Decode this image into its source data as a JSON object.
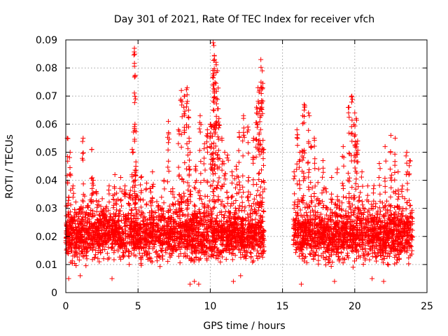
{
  "chart_data": {
    "type": "scatter",
    "title": "Day 301 of 2021, Rate Of TEC Index for receiver vfch",
    "xlabel": "GPS time / hours",
    "ylabel": "ROTI / TECUs",
    "xlim": [
      0,
      25
    ],
    "ylim": [
      0,
      0.09
    ],
    "xticks": [
      0,
      5,
      10,
      15,
      20,
      25
    ],
    "xtick_labels": [
      "0",
      "5",
      "10",
      "15",
      "20",
      "25"
    ],
    "yticks": [
      0,
      0.01,
      0.02,
      0.03,
      0.04,
      0.05,
      0.06,
      0.07,
      0.08,
      0.09
    ],
    "ytick_labels": [
      "0",
      "0.01",
      "0.02",
      "0.03",
      "0.04",
      "0.05",
      "0.06",
      "0.07",
      "0.08",
      "0.09"
    ],
    "grid": true,
    "marker": "+",
    "color": "#ff0000",
    "series": [
      {
        "name": "ROTI",
        "x": [
          0.1,
          0.2,
          0.3,
          0.5,
          0.7,
          1.0,
          1.2,
          1.5,
          1.8,
          1.9,
          2.1,
          2.5,
          3.0,
          3.4,
          3.8,
          4.1,
          4.4,
          4.6,
          4.75,
          4.8,
          4.85,
          5.2,
          5.6,
          6.0,
          6.4,
          6.8,
          7.1,
          7.4,
          7.8,
          8.0,
          8.2,
          8.4,
          8.5,
          8.6,
          9.0,
          9.3,
          9.6,
          9.8,
          10.0,
          10.1,
          10.2,
          10.25,
          10.3,
          10.4,
          10.5,
          10.6,
          10.8,
          11.0,
          11.2,
          11.5,
          11.8,
          12.0,
          12.3,
          12.6,
          13.0,
          13.2,
          13.3,
          13.4,
          13.5,
          13.6,
          13.7,
          15.8,
          16.0,
          16.2,
          16.4,
          16.5,
          16.8,
          17.0,
          17.2,
          17.5,
          17.8,
          18.0,
          18.4,
          18.8,
          19.2,
          19.6,
          19.8,
          20.0,
          20.1,
          20.2,
          20.5,
          20.9,
          21.3,
          21.7,
          22.1,
          22.5,
          22.8,
          23.0,
          23.3,
          23.6,
          23.8
        ],
        "y": [
          0.055,
          0.034,
          0.05,
          0.038,
          0.02,
          0.028,
          0.055,
          0.031,
          0.051,
          0.04,
          0.036,
          0.025,
          0.038,
          0.042,
          0.041,
          0.038,
          0.035,
          0.051,
          0.087,
          0.077,
          0.045,
          0.041,
          0.039,
          0.043,
          0.031,
          0.04,
          0.061,
          0.037,
          0.058,
          0.072,
          0.07,
          0.073,
          0.065,
          0.05,
          0.045,
          0.063,
          0.053,
          0.058,
          0.06,
          0.059,
          0.089,
          0.088,
          0.083,
          0.082,
          0.079,
          0.062,
          0.055,
          0.05,
          0.049,
          0.043,
          0.045,
          0.057,
          0.063,
          0.059,
          0.055,
          0.066,
          0.073,
          0.072,
          0.083,
          0.079,
          0.051,
          0.043,
          0.058,
          0.05,
          0.063,
          0.067,
          0.064,
          0.052,
          0.055,
          0.044,
          0.047,
          0.037,
          0.041,
          0.044,
          0.052,
          0.066,
          0.07,
          0.064,
          0.062,
          0.054,
          0.043,
          0.038,
          0.037,
          0.046,
          0.052,
          0.056,
          0.055,
          0.043,
          0.038,
          0.05,
          0.047
        ]
      }
    ],
    "coverage": {
      "segments": [
        [
          0,
          13.75
        ],
        [
          15.75,
          24
        ]
      ],
      "baseline_min": 0.008,
      "baseline_max": 0.03,
      "samples_per_hour": 180
    },
    "low_outliers": {
      "x": [
        0.2,
        1.0,
        3.2,
        8.6,
        8.9,
        9.2,
        11.6,
        12.1,
        16.3,
        18.6,
        21.2,
        22.0
      ],
      "y": [
        0.005,
        0.006,
        0.005,
        0.003,
        0.004,
        0.003,
        0.004,
        0.006,
        0.003,
        0.004,
        0.005,
        0.004
      ]
    }
  }
}
